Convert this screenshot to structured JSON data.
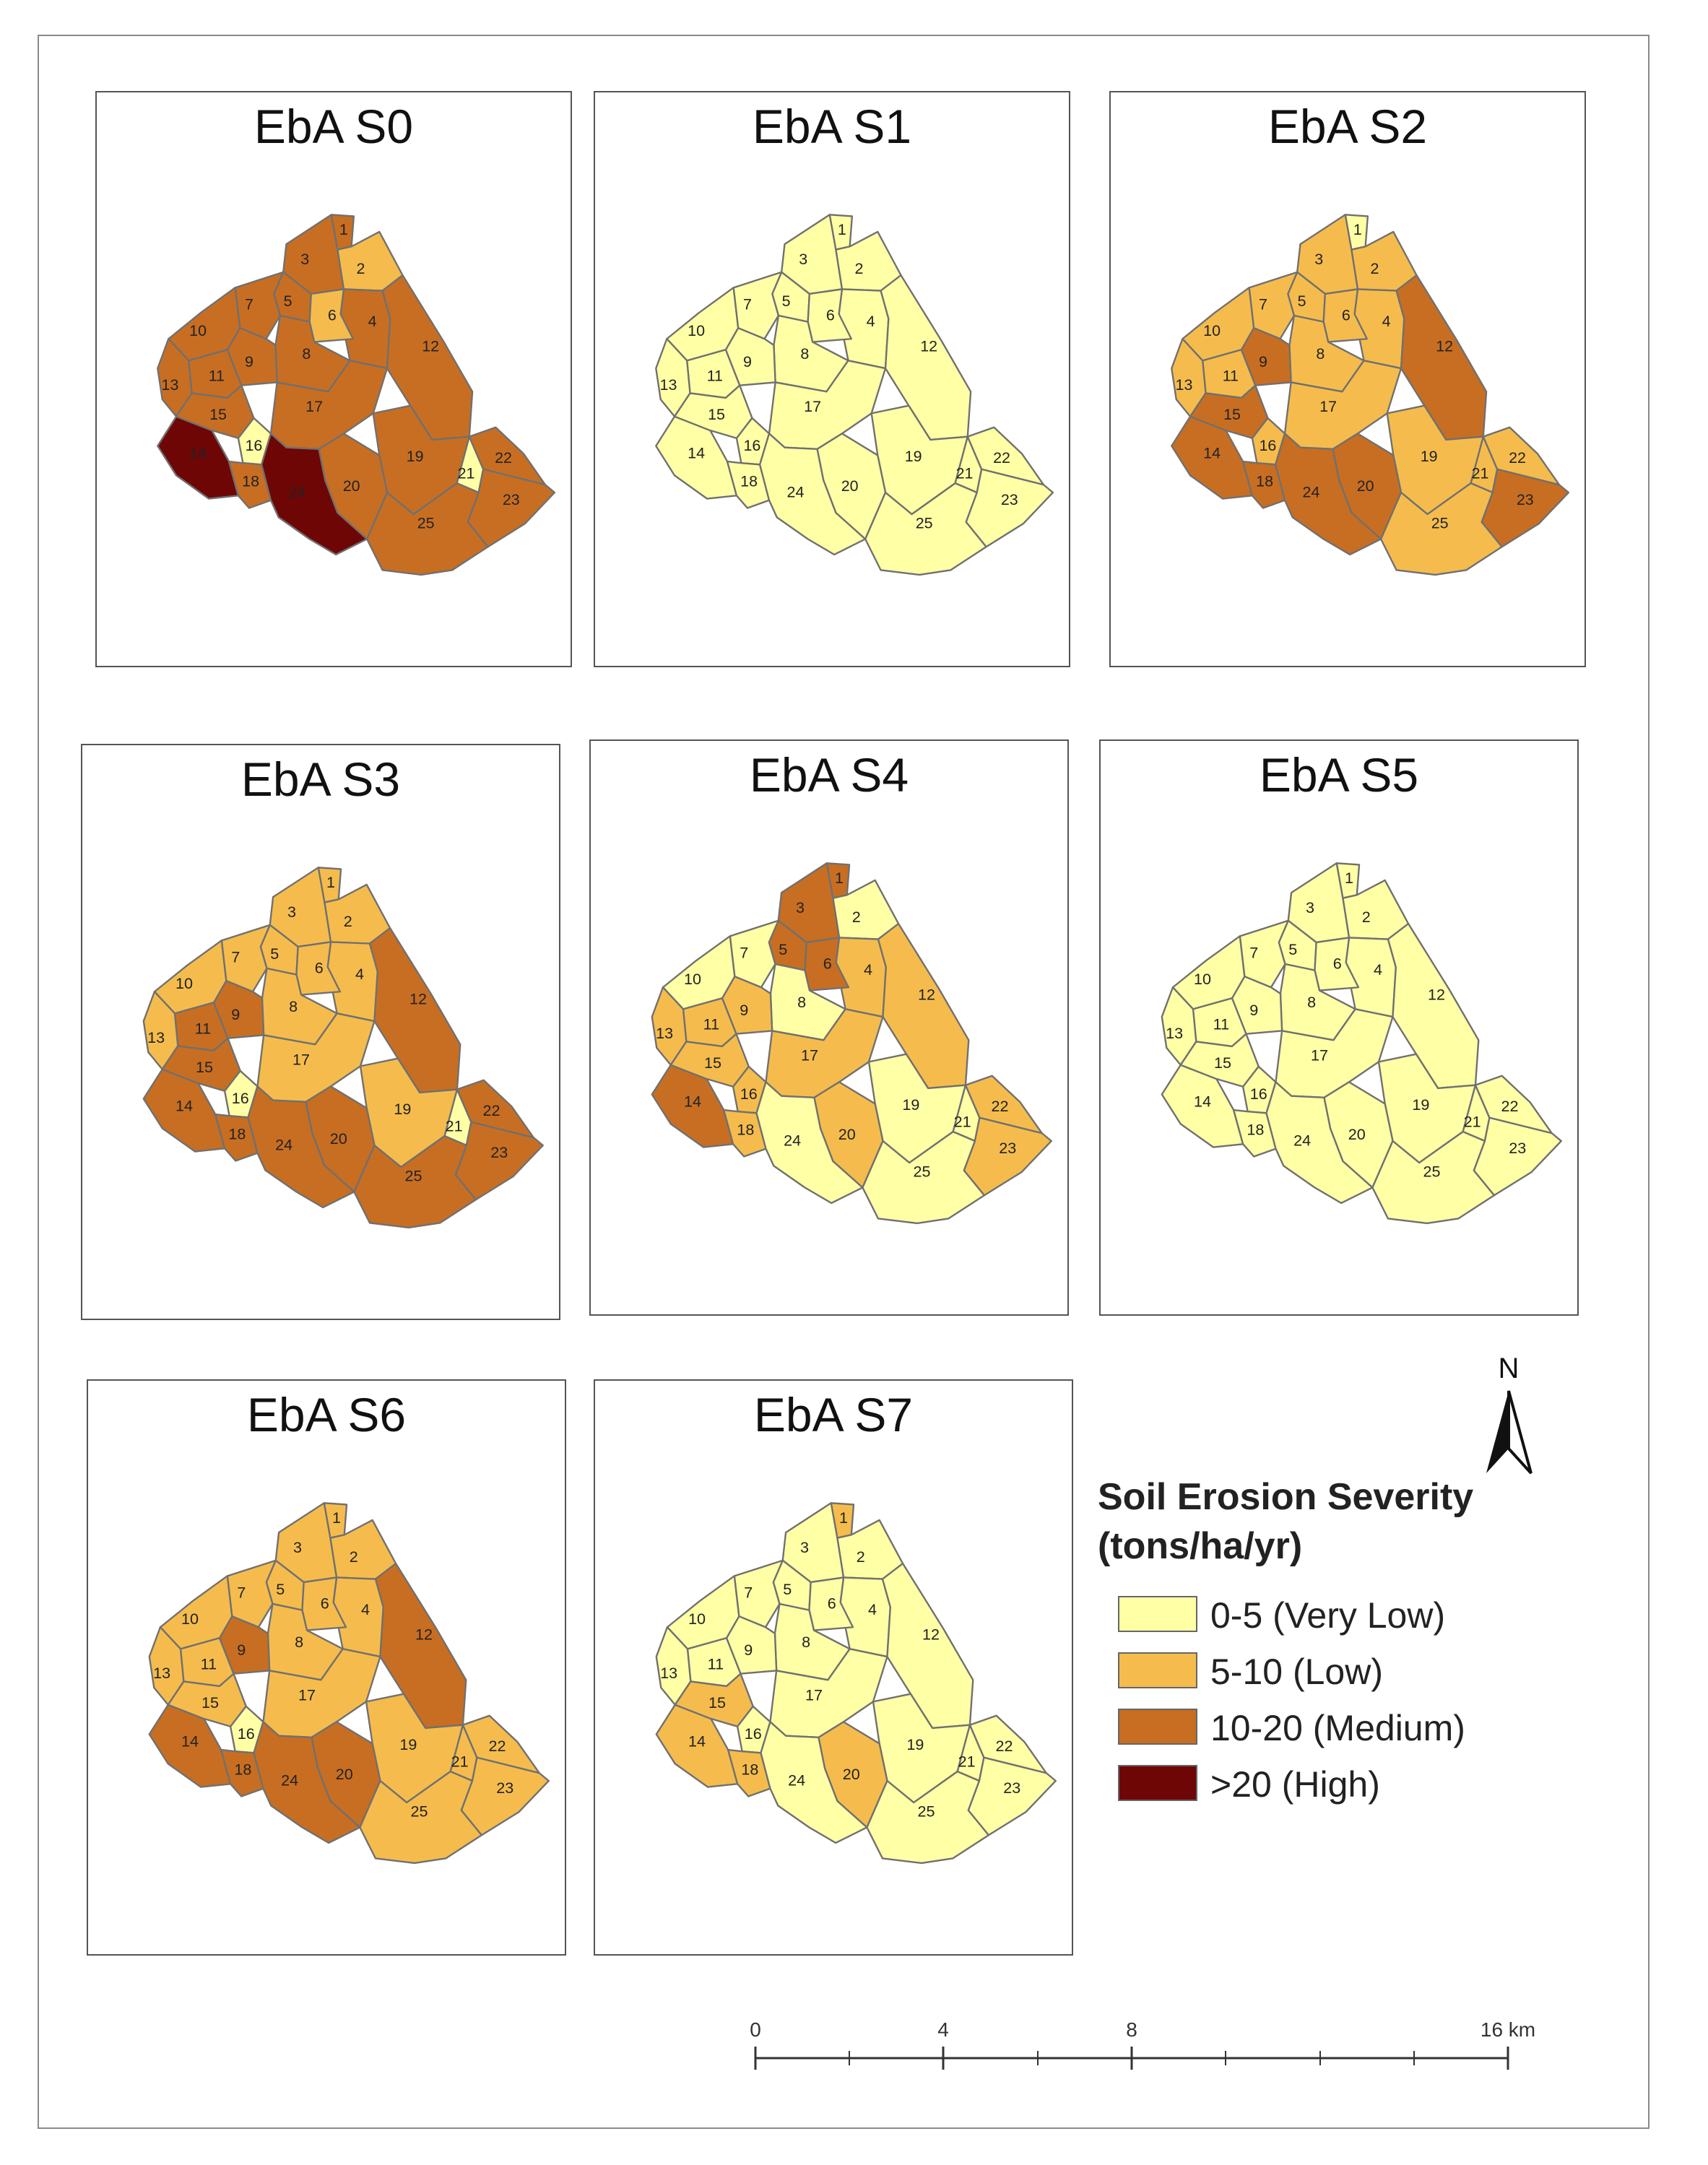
{
  "panels": [
    {
      "title": "EbA S0",
      "classes": [
        2,
        1,
        2,
        2,
        2,
        1,
        2,
        2,
        2,
        2,
        2,
        2,
        2,
        3,
        2,
        0,
        2,
        2,
        2,
        2,
        0,
        2,
        2,
        3,
        2
      ]
    },
    {
      "title": "EbA S1",
      "classes": [
        0,
        0,
        0,
        0,
        0,
        0,
        0,
        0,
        0,
        0,
        0,
        0,
        0,
        0,
        0,
        0,
        0,
        0,
        0,
        0,
        0,
        0,
        0,
        0,
        0
      ]
    },
    {
      "title": "EbA S2",
      "classes": [
        0,
        1,
        1,
        1,
        1,
        1,
        1,
        1,
        2,
        1,
        1,
        2,
        1,
        2,
        2,
        1,
        1,
        2,
        1,
        2,
        1,
        1,
        2,
        2,
        1
      ]
    },
    {
      "title": "EbA S3",
      "classes": [
        1,
        1,
        1,
        1,
        1,
        1,
        1,
        1,
        2,
        1,
        2,
        2,
        1,
        2,
        2,
        0,
        1,
        2,
        1,
        2,
        0,
        2,
        2,
        2,
        2
      ]
    },
    {
      "title": "EbA S4",
      "classes": [
        2,
        0,
        2,
        1,
        2,
        2,
        0,
        0,
        1,
        0,
        1,
        1,
        1,
        2,
        1,
        1,
        1,
        1,
        0,
        1,
        0,
        1,
        1,
        0,
        0
      ]
    },
    {
      "title": "EbA S5",
      "classes": [
        0,
        0,
        0,
        0,
        0,
        0,
        0,
        0,
        0,
        0,
        0,
        0,
        0,
        0,
        0,
        0,
        0,
        0,
        0,
        0,
        0,
        0,
        0,
        0,
        0
      ]
    },
    {
      "title": "EbA S6",
      "classes": [
        1,
        1,
        1,
        1,
        1,
        1,
        1,
        1,
        2,
        1,
        1,
        2,
        1,
        2,
        1,
        0,
        1,
        2,
        1,
        2,
        1,
        1,
        1,
        2,
        1
      ]
    },
    {
      "title": "EbA S7",
      "classes": [
        1,
        0,
        0,
        0,
        0,
        0,
        0,
        0,
        0,
        0,
        0,
        0,
        0,
        1,
        1,
        0,
        0,
        1,
        0,
        1,
        0,
        0,
        0,
        0,
        0
      ]
    }
  ],
  "zones": [
    "1",
    "2",
    "3",
    "4",
    "5",
    "6",
    "7",
    "8",
    "9",
    "10",
    "11",
    "12",
    "13",
    "14",
    "15",
    "16",
    "17",
    "18",
    "19",
    "20",
    "21",
    "22",
    "23",
    "24",
    "25"
  ],
  "legend": {
    "title_line1": "Soil Erosion Severity",
    "title_line2": "(tons/ha/yr)",
    "items": [
      {
        "label": "0-5 (Very Low)",
        "color": "#ffffa6"
      },
      {
        "label": "5-10 (Low)",
        "color": "#f5bc4d"
      },
      {
        "label": "10-20 (Medium)",
        "color": "#c86e22"
      },
      {
        "label": ">20 (High)",
        "color": "#6e0606"
      }
    ]
  },
  "north_label": "N",
  "scale": {
    "ticks": [
      "0",
      "4",
      "8",
      "16 km"
    ]
  }
}
